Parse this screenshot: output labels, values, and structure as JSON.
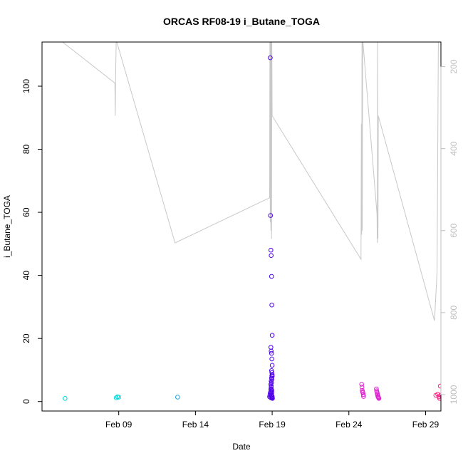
{
  "chart_data": {
    "type": "scatter",
    "title": "ORCAS RF08-19 i_Butane_TOGA",
    "xlabel": "Date",
    "ylabel": "i_Butane_TOGA",
    "xlim": [
      "2016-02-04",
      "2016-03-01"
    ],
    "ylim": [
      -3,
      114
    ],
    "x_ticks": [
      {
        "date": "2016-02-09",
        "label": "Feb 09"
      },
      {
        "date": "2016-02-14",
        "label": "Feb 14"
      },
      {
        "date": "2016-02-19",
        "label": "Feb 19"
      },
      {
        "date": "2016-02-24",
        "label": "Feb 24"
      },
      {
        "date": "2016-02-29",
        "label": "Feb 29"
      }
    ],
    "y_ticks": [
      0,
      20,
      40,
      60,
      80,
      100
    ],
    "y2_lim": [
      1040,
      140
    ],
    "y2_ticks": [
      200,
      400,
      600,
      800,
      1000
    ],
    "y2_color": "#bdbdbd",
    "series": [
      {
        "color": "#00d8d8",
        "x": [
          "2016-02-05T12:00",
          "2016-02-08T20:00",
          "2016-02-08T22:00",
          "2016-02-09T00:00"
        ],
        "y": [
          1.0,
          1.2,
          1.5,
          1.4
        ]
      },
      {
        "color": "#1ea7e0",
        "x": [
          "2016-02-12T20:00"
        ],
        "y": [
          1.4
        ]
      },
      {
        "color": "#5000e8",
        "x": [
          "2016-02-18T20:00",
          "2016-02-18T20:30",
          "2016-02-18T21:00",
          "2016-02-18T21:30",
          "2016-02-18T22:00",
          "2016-02-18T22:00",
          "2016-02-18T22:30",
          "2016-02-18T22:30",
          "2016-02-18T23:00",
          "2016-02-18T23:00",
          "2016-02-18T23:30",
          "2016-02-18T23:30",
          "2016-02-19T00:00",
          "2016-02-19T00:00",
          "2016-02-19T00:30",
          "2016-02-18T21:00",
          "2016-02-18T21:30",
          "2016-02-18T22:00",
          "2016-02-18T22:30",
          "2016-02-18T23:00",
          "2016-02-18T23:30",
          "2016-02-19T00:00",
          "2016-02-18T22:00",
          "2016-02-18T22:30",
          "2016-02-18T23:00",
          "2016-02-18T23:30",
          "2016-02-19T00:00",
          "2016-02-18T23:00",
          "2016-02-18T23:30",
          "2016-02-19T00:00",
          "2016-02-18T22:00",
          "2016-02-18T22:30",
          "2016-02-18T23:00",
          "2016-02-18T23:30",
          "2016-02-19T00:00",
          "2016-02-18T22:30",
          "2016-02-18T23:00",
          "2016-02-18T23:30",
          "2016-02-18T22:00",
          "2016-02-18T23:00",
          "2016-02-18T23:30"
        ],
        "y": [
          1.5,
          2.0,
          2.5,
          3.0,
          1.2,
          4.0,
          5.0,
          1.8,
          6.0,
          2.2,
          7.0,
          3.5,
          8.0,
          1.4,
          1.0,
          109.0,
          59.0,
          48.0,
          46.3,
          39.7,
          30.6,
          21.0,
          17.2,
          16.0,
          15.3,
          13.5,
          11.5,
          9.8,
          9.2,
          8.5,
          5.5,
          4.5,
          3.8,
          2.8,
          1.6,
          6.5,
          7.5,
          8.2,
          3.0,
          2.0,
          1.1
        ]
      },
      {
        "color": "#e020d0",
        "x": [
          "2016-02-24T20:00",
          "2016-02-24T20:30",
          "2016-02-24T21:00",
          "2016-02-24T21:30",
          "2016-02-24T22:00",
          "2016-02-24T22:30",
          "2016-02-24T23:00",
          "2016-02-25T19:00",
          "2016-02-25T19:30",
          "2016-02-25T20:00",
          "2016-02-25T20:30",
          "2016-02-25T21:00",
          "2016-02-25T21:30",
          "2016-02-25T22:00",
          "2016-02-25T22:30",
          "2016-02-25T23:00"
        ],
        "y": [
          5.5,
          4.6,
          3.5,
          3.0,
          2.8,
          2.2,
          1.6,
          4.0,
          3.4,
          3.0,
          2.5,
          2.0,
          1.6,
          1.4,
          1.2,
          1.0
        ]
      },
      {
        "color": "#ff1a80",
        "x": [
          "2016-02-29T16:00",
          "2016-02-29T19:00",
          "2016-02-29T21:00",
          "2016-02-29T22:00",
          "2016-02-29T23:00",
          "2016-02-29T23:30"
        ],
        "y": [
          2.0,
          2.3,
          1.5,
          1.0,
          4.9,
          2.0
        ]
      }
    ],
    "altitude_line": {
      "color": "#c8c8c8",
      "x": [
        "2016-02-05T08:00",
        "2016-02-08T18:00",
        "2016-02-08T18:30",
        "2016-02-08T19:00",
        "2016-02-08T20:00",
        "2016-02-08T21:00",
        "2016-02-12T16:00",
        "2016-02-18T20:00",
        "2016-02-18T20:30",
        "2016-02-18T21:00",
        "2016-02-18T21:30",
        "2016-02-18T22:00",
        "2016-02-18T22:30",
        "2016-02-18T23:00",
        "2016-02-18T23:30",
        "2016-02-19T00:00",
        "2016-02-24T19:00",
        "2016-02-24T19:30",
        "2016-02-24T20:00",
        "2016-02-24T20:30",
        "2016-02-24T21:00",
        "2016-02-24T21:30",
        "2016-02-24T22:00",
        "2016-02-25T20:00",
        "2016-02-25T20:30",
        "2016-02-25T21:00",
        "2016-02-25T21:30",
        "2016-02-25T22:00",
        "2016-02-29T14:00",
        "2016-02-29T18:00",
        "2016-02-29T20:00"
      ],
      "y": [
        140,
        240,
        320,
        240,
        140,
        140,
        630,
        520,
        140,
        580,
        140,
        600,
        140,
        620,
        140,
        320,
        670,
        340,
        610,
        140,
        600,
        140,
        140,
        560,
        630,
        140,
        620,
        320,
        820,
        700,
        140
      ]
    }
  }
}
